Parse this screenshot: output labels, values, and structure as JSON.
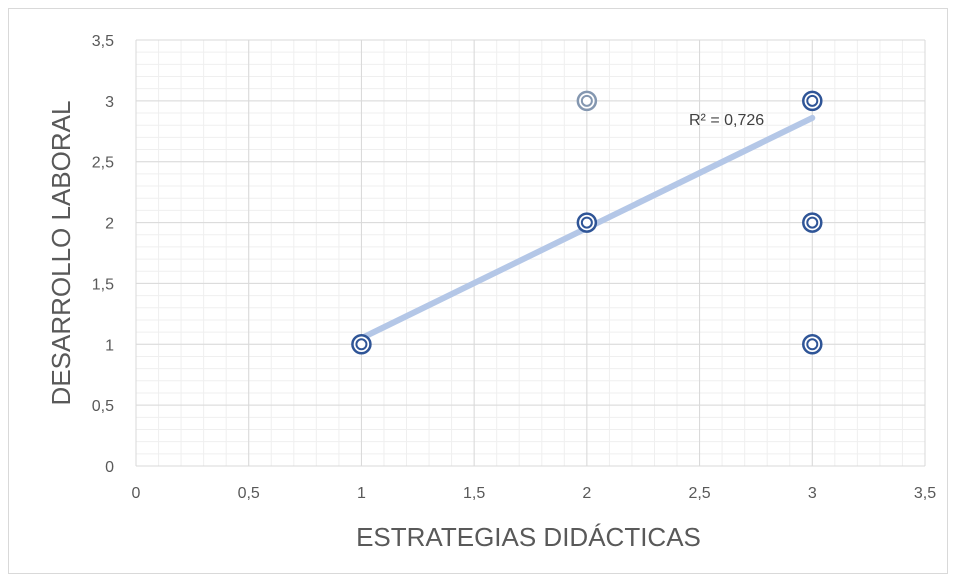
{
  "chart_data": {
    "type": "scatter",
    "xlabel": "ESTRATEGIAS DIDÁCTICAS",
    "ylabel": "DESARROLLO LABORAL",
    "xlim": [
      0,
      3.5
    ],
    "ylim": [
      0,
      3.5
    ],
    "x_ticks": [
      "0",
      "0,5",
      "1",
      "1,5",
      "2",
      "2,5",
      "3",
      "3,5"
    ],
    "y_ticks": [
      "0",
      "0,5",
      "1",
      "1,5",
      "2",
      "2,5",
      "3",
      "3,5"
    ],
    "grid": true,
    "minor_grid": true,
    "points": [
      {
        "x": 1,
        "y": 1
      },
      {
        "x": 2,
        "y": 2
      },
      {
        "x": 2,
        "y": 3
      },
      {
        "x": 3,
        "y": 3
      },
      {
        "x": 3,
        "y": 2
      },
      {
        "x": 3,
        "y": 1
      }
    ],
    "trendline": {
      "type": "linear",
      "x0": 1,
      "y0": 1.05,
      "x1": 3,
      "y1": 2.86,
      "label": "R² = 0,726"
    },
    "colors": {
      "marker": "#2f5597",
      "marker_light": "#8497b0",
      "trendline": "#b4c7e7",
      "grid_major": "#d9d9d9",
      "grid_minor": "#efefef"
    }
  }
}
